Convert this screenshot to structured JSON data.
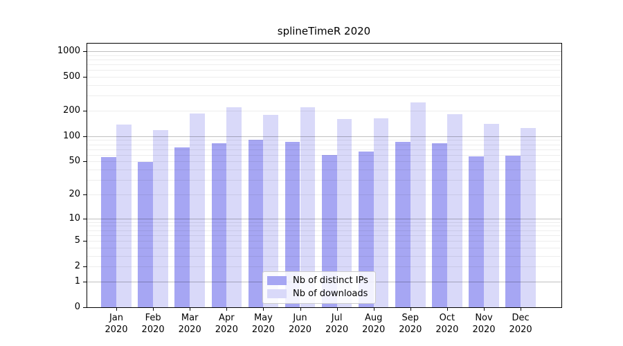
{
  "chart_data": {
    "type": "bar",
    "title": "splineTimeR 2020",
    "categories": [
      "Jan",
      "Feb",
      "Mar",
      "Apr",
      "May",
      "Jun",
      "Jul",
      "Aug",
      "Sep",
      "Oct",
      "Nov",
      "Dec"
    ],
    "category_year": "2020",
    "series": [
      {
        "name": "Nb of distinct IPs",
        "color": "#a6a6f3",
        "values": [
          56,
          49,
          74,
          82,
          91,
          85,
          60,
          66,
          86,
          83,
          58,
          59
        ]
      },
      {
        "name": "Nb of downloads",
        "color": "#d9d9f9",
        "values": [
          137,
          117,
          184,
          220,
          177,
          219,
          159,
          164,
          248,
          181,
          139,
          124
        ]
      }
    ],
    "yscale": "log1p",
    "y_ticks": [
      0,
      1,
      2,
      5,
      10,
      20,
      50,
      100,
      200,
      500,
      1000
    ],
    "ylim": [
      0,
      1250
    ],
    "xlabel": "",
    "ylabel": "",
    "grid": true,
    "legend_position": "lower center"
  },
  "colors": {
    "grid_major": "rgba(0,0,0,0.25)",
    "grid_minor": "rgba(0,0,0,0.07)",
    "spine": "#000000",
    "background": "#ffffff"
  }
}
